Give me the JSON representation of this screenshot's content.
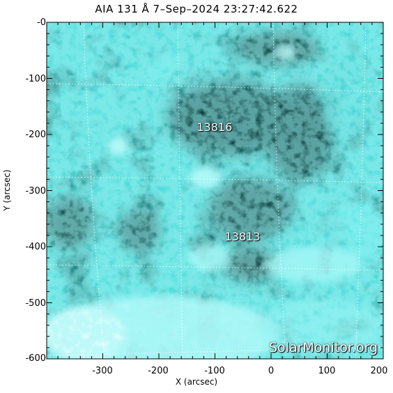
{
  "title": "AIA 131 Å  7–Sep–2024 23:27:42.622",
  "axes": {
    "xlabel": "X (arcsec)",
    "ylabel": "Y (arcsec)",
    "xlim": [
      -400,
      200
    ],
    "ylim": [
      -600,
      0
    ],
    "xticks": [
      "-300",
      "-200",
      "-100",
      "0",
      "100",
      "200"
    ],
    "yticks": [
      "-0",
      "-100",
      "-200",
      "-300",
      "-400",
      "-500",
      "-600"
    ]
  },
  "active_regions": [
    {
      "label": "13816",
      "x": -130,
      "y": -190
    },
    {
      "label": "13813",
      "x": -80,
      "y": -385
    }
  ],
  "watermark": "SolarMonitor.org",
  "colors": {
    "dark": "#0b2f2f",
    "mid": "#1a7f7f",
    "bright": "#4fe0e0",
    "white": "#e8ffff"
  }
}
